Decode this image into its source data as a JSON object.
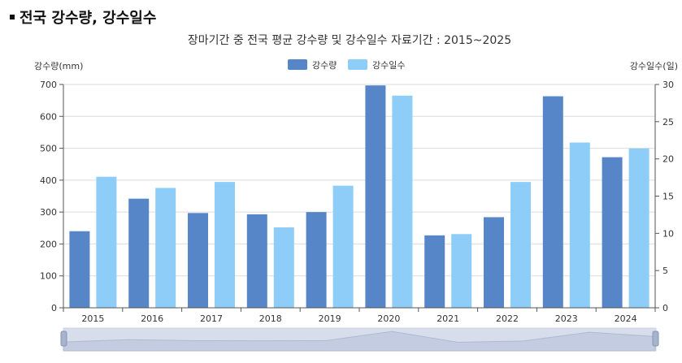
{
  "page_heading": "전국 강수량, 강수일수",
  "chart_data": {
    "type": "bar",
    "title": "장마기간 중 전국 평균 강수량 및 강수일수 자료기간 : 2015~2025",
    "categories": [
      "2015",
      "2016",
      "2017",
      "2018",
      "2019",
      "2020",
      "2021",
      "2022",
      "2023",
      "2024"
    ],
    "series": [
      {
        "name": "강수량",
        "axis": "left",
        "color": "#5686c8",
        "values": [
          240,
          342,
          297,
          293,
          300,
          697,
          227,
          284,
          663,
          472
        ]
      },
      {
        "name": "강수일수",
        "axis": "right",
        "color": "#8dcdf7",
        "values": [
          17.6,
          16.1,
          16.9,
          10.8,
          16.4,
          28.5,
          9.9,
          16.9,
          22.2,
          21.4
        ]
      }
    ],
    "y_left": {
      "label": "강수량(mm)",
      "lim": [
        0,
        700
      ],
      "ticks": [
        "0",
        "100",
        "200",
        "300",
        "400",
        "500",
        "600",
        "700"
      ]
    },
    "y_right": {
      "label": "강수일수(일)",
      "lim": [
        0,
        30
      ],
      "ticks": [
        "0",
        "5",
        "10",
        "15",
        "20",
        "25",
        "30"
      ]
    },
    "grid": true,
    "legend_position": "top-center"
  }
}
